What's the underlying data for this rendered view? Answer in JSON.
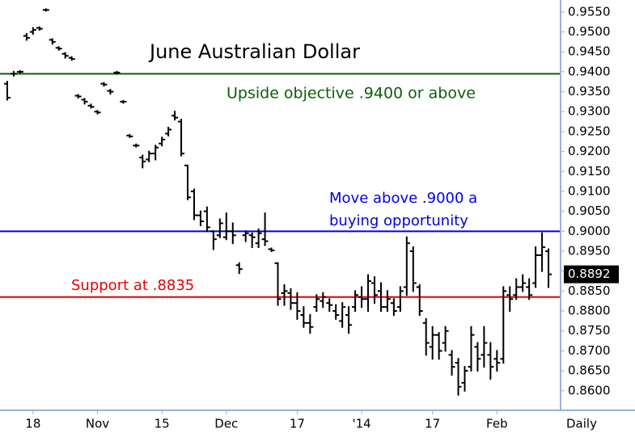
{
  "chart_data": {
    "type": "ohlc",
    "title": "June Australian Dollar",
    "color": "#000000",
    "open": [
      0.937,
      0.9395,
      0.94,
      0.949,
      0.95,
      0.951,
      0.9555,
      0.948,
      0.946,
      0.9445,
      0.9435,
      0.934,
      0.933,
      0.9315,
      0.93,
      0.937,
      0.9352,
      0.9398,
      0.9325,
      0.924,
      0.9215,
      0.9185,
      0.918,
      0.9195,
      0.922,
      0.9245,
      0.929,
      0.9275,
      0.9165,
      0.91,
      0.904,
      0.905,
      0.9,
      0.899,
      0.8985,
      0.9,
      0.8915,
      0.899,
      0.899,
      0.897,
      0.898,
      0.8955,
      0.892,
      0.8845,
      0.8845,
      0.882,
      0.879,
      0.877,
      0.881,
      0.8825,
      0.882,
      0.88,
      0.8775,
      0.879,
      0.881,
      0.8835,
      0.883,
      0.887,
      0.885,
      0.881,
      0.882,
      0.881,
      0.886,
      0.895,
      0.886,
      0.877,
      0.871,
      0.874,
      0.872,
      0.869,
      0.867,
      0.862,
      0.866,
      0.871,
      0.869,
      0.869,
      0.868,
      0.868,
      0.884,
      0.884,
      0.886,
      0.886,
      0.887,
      0.894,
      0.895
    ],
    "high": [
      0.9375,
      0.94,
      0.9402,
      0.9495,
      0.951,
      0.9512,
      0.9557,
      0.9482,
      0.9462,
      0.9447,
      0.9437,
      0.9342,
      0.9332,
      0.9318,
      0.9302,
      0.9372,
      0.9355,
      0.94,
      0.9327,
      0.9242,
      0.9218,
      0.919,
      0.92,
      0.9215,
      0.9235,
      0.926,
      0.93,
      0.928,
      0.9165,
      0.9105,
      0.905,
      0.906,
      0.9,
      0.903,
      0.9045,
      0.902,
      0.892,
      0.9,
      0.8995,
      0.9005,
      0.9045,
      0.8957,
      0.892,
      0.8865,
      0.8855,
      0.8845,
      0.881,
      0.879,
      0.884,
      0.8845,
      0.883,
      0.8815,
      0.882,
      0.881,
      0.885,
      0.886,
      0.889,
      0.8885,
      0.887,
      0.885,
      0.883,
      0.886,
      0.8985,
      0.896,
      0.8865,
      0.878,
      0.876,
      0.8745,
      0.876,
      0.87,
      0.868,
      0.866,
      0.876,
      0.872,
      0.876,
      0.872,
      0.87,
      0.886,
      0.886,
      0.888,
      0.889,
      0.888,
      0.896,
      0.8995,
      0.8955
    ],
    "low": [
      0.933,
      0.939,
      0.9398,
      0.948,
      0.9495,
      0.9505,
      0.9553,
      0.947,
      0.9455,
      0.9435,
      0.943,
      0.9335,
      0.932,
      0.931,
      0.9295,
      0.9365,
      0.9345,
      0.9395,
      0.9322,
      0.9236,
      0.9212,
      0.916,
      0.9175,
      0.918,
      0.9215,
      0.924,
      0.928,
      0.919,
      0.908,
      0.903,
      0.9015,
      0.9,
      0.8955,
      0.8985,
      0.898,
      0.897,
      0.8895,
      0.8975,
      0.896,
      0.896,
      0.8965,
      0.895,
      0.8815,
      0.8815,
      0.8805,
      0.878,
      0.876,
      0.8745,
      0.88,
      0.881,
      0.88,
      0.878,
      0.876,
      0.8745,
      0.88,
      0.881,
      0.88,
      0.882,
      0.88,
      0.88,
      0.879,
      0.88,
      0.884,
      0.885,
      0.879,
      0.869,
      0.868,
      0.868,
      0.87,
      0.864,
      0.859,
      0.86,
      0.865,
      0.865,
      0.866,
      0.863,
      0.865,
      0.867,
      0.88,
      0.883,
      0.885,
      0.883,
      0.886,
      0.89,
      0.886
    ],
    "close": [
      0.9335,
      0.9395,
      0.94,
      0.9485,
      0.9505,
      0.9508,
      0.9555,
      0.9475,
      0.9458,
      0.944,
      0.9432,
      0.9338,
      0.9325,
      0.9312,
      0.9298,
      0.9368,
      0.935,
      0.9398,
      0.9325,
      0.9238,
      0.9215,
      0.9175,
      0.9195,
      0.921,
      0.923,
      0.9255,
      0.9285,
      0.9195,
      0.9085,
      0.904,
      0.9025,
      0.901,
      0.898,
      0.902,
      0.9,
      0.899,
      0.8905,
      0.8995,
      0.8985,
      0.8995,
      0.8975,
      0.8952,
      0.883,
      0.885,
      0.882,
      0.88,
      0.877,
      0.876,
      0.883,
      0.8835,
      0.8815,
      0.879,
      0.881,
      0.8765,
      0.884,
      0.883,
      0.8875,
      0.884,
      0.881,
      0.883,
      0.88,
      0.885,
      0.897,
      0.887,
      0.88,
      0.872,
      0.874,
      0.87,
      0.875,
      0.866,
      0.861,
      0.865,
      0.874,
      0.868,
      0.872,
      0.866,
      0.867,
      0.885,
      0.883,
      0.886,
      0.887,
      0.884,
      0.894,
      0.896,
      0.8892
    ],
    "last_value": 0.8892,
    "xlim": [
      -0.5,
      85.5
    ],
    "xticks": [
      {
        "value": 4,
        "label": "18"
      },
      {
        "value": 14,
        "label": "Nov"
      },
      {
        "value": 24,
        "label": "15"
      },
      {
        "value": 34,
        "label": "Dec"
      },
      {
        "value": 45,
        "label": "17"
      },
      {
        "value": 55,
        "label": "'14"
      },
      {
        "value": 66,
        "label": "17"
      },
      {
        "value": 76,
        "label": "Feb"
      }
    ],
    "x_axis_label": "Daily",
    "ylim": [
      0.8555,
      0.958
    ],
    "yticks": [
      {
        "value": 0.86,
        "label": "0.8600"
      },
      {
        "value": 0.865,
        "label": "0.8650"
      },
      {
        "value": 0.87,
        "label": "0.8700"
      },
      {
        "value": 0.875,
        "label": "0.8750"
      },
      {
        "value": 0.88,
        "label": "0.8800"
      },
      {
        "value": 0.885,
        "label": "0.8850"
      },
      {
        "value": 0.89,
        "label": "0.8900"
      },
      {
        "value": 0.895,
        "label": "0.8950"
      },
      {
        "value": 0.9,
        "label": "0.9000"
      },
      {
        "value": 0.905,
        "label": "0.9050"
      },
      {
        "value": 0.91,
        "label": "0.9100"
      },
      {
        "value": 0.915,
        "label": "0.9150"
      },
      {
        "value": 0.92,
        "label": "0.9200"
      },
      {
        "value": 0.925,
        "label": "0.9250"
      },
      {
        "value": 0.93,
        "label": "0.9300"
      },
      {
        "value": 0.935,
        "label": "0.9350"
      },
      {
        "value": 0.94,
        "label": "0.9400"
      },
      {
        "value": 0.945,
        "label": "0.9450"
      },
      {
        "value": 0.95,
        "label": "0.9500"
      },
      {
        "value": 0.955,
        "label": "0.9550"
      }
    ],
    "hlines": [
      {
        "value": 0.9395,
        "color": "#0b5d0b"
      },
      {
        "value": 0.9,
        "color": "#0000e6"
      },
      {
        "value": 0.8835,
        "color": "#e60000"
      }
    ],
    "annotations": [
      {
        "text": "Upside objective .9400 or above",
        "color": "#0b5d0b"
      },
      {
        "text": "Move above .9000 a",
        "color": "#0000e6"
      },
      {
        "text": "buying opportunity",
        "color": "#0000e6"
      },
      {
        "text": "Support at .8835",
        "color": "#e60000"
      }
    ]
  }
}
